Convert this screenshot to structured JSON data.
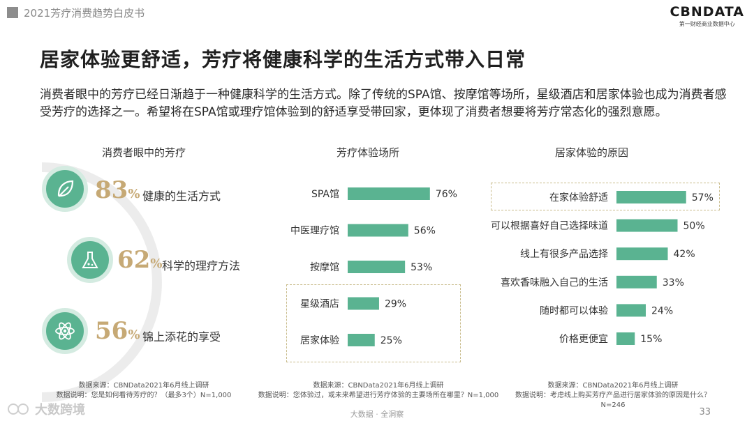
{
  "header": {
    "doc_title": "2021芳疗消费趋势白皮书",
    "brand": "CBNDATA",
    "brand_sub": "第一财经商业数据中心"
  },
  "title": "居家体验更舒适，芳疗将健康科学的生活方式带入日常",
  "intro": "消费者眼中的芳疗已经日渐趋于一种健康科学的生活方式。除了传统的SPA馆、按摩馆等场所，星级酒店和居家体验也成为消费者感受芳疗的选择之一。希望将在SPA馆或理疗馆体验到的舒适享受带回家，更体现了消费者想要将芳疗常态化的强烈意愿。",
  "panel1": {
    "title": "消费者眼中的芳疗",
    "items": [
      {
        "pct": "83",
        "unit": "%",
        "label": "健康的生活方式",
        "icon": "leaf-icon"
      },
      {
        "pct": "62",
        "unit": "%",
        "label": "科学的理疗方法",
        "icon": "flask-icon"
      },
      {
        "pct": "56",
        "unit": "%",
        "label": "锦上添花的享受",
        "icon": "atom-icon"
      }
    ]
  },
  "panel2": {
    "title": "芳疗体验场所"
  },
  "panel3": {
    "title": "居家体验的原因"
  },
  "chart_data": [
    {
      "type": "bar",
      "orientation": "horizontal",
      "title": "芳疗体验场所",
      "categories": [
        "SPA馆",
        "中医理疗馆",
        "按摩馆",
        "星级酒店",
        "居家体验"
      ],
      "values": [
        76,
        56,
        53,
        29,
        25
      ],
      "value_labels": [
        "76%",
        "56%",
        "53%",
        "29%",
        "25%"
      ],
      "unit": "%",
      "bar_color": "#5ab391"
    },
    {
      "type": "bar",
      "orientation": "horizontal",
      "title": "居家体验的原因",
      "categories": [
        "在家体验舒适",
        "可以根据喜好自己选择味道",
        "线上有很多产品选择",
        "喜欢香味融入自己的生活",
        "随时都可以体验",
        "价格更便宜"
      ],
      "values": [
        57,
        50,
        42,
        33,
        24,
        15
      ],
      "value_labels": [
        "57%",
        "50%",
        "42%",
        "33%",
        "24%",
        "15%"
      ],
      "unit": "%",
      "bar_color": "#5ab391"
    }
  ],
  "notes": {
    "n1_source": "数据来源：CBNData2021年6月线上调研",
    "n1_desc": "数据说明：您是如何看待芳疗的？（最多3个）N=1,000",
    "n2_source": "数据来源：CBNData2021年6月线上调研",
    "n2_desc": "数据说明：您体验过，或未来希望进行芳疗体验的主要场所在哪里？N=1,000",
    "n3_source": "数据来源：CBNData2021年6月线上调研",
    "n3_desc": "数据说明：考虑线上购买芳疗产品进行居家体验的原因是什么？",
    "n3_n": "N=246"
  },
  "footer": {
    "center": "大数据 · 全洞察",
    "page": "33",
    "watermark": "大数跨境"
  }
}
